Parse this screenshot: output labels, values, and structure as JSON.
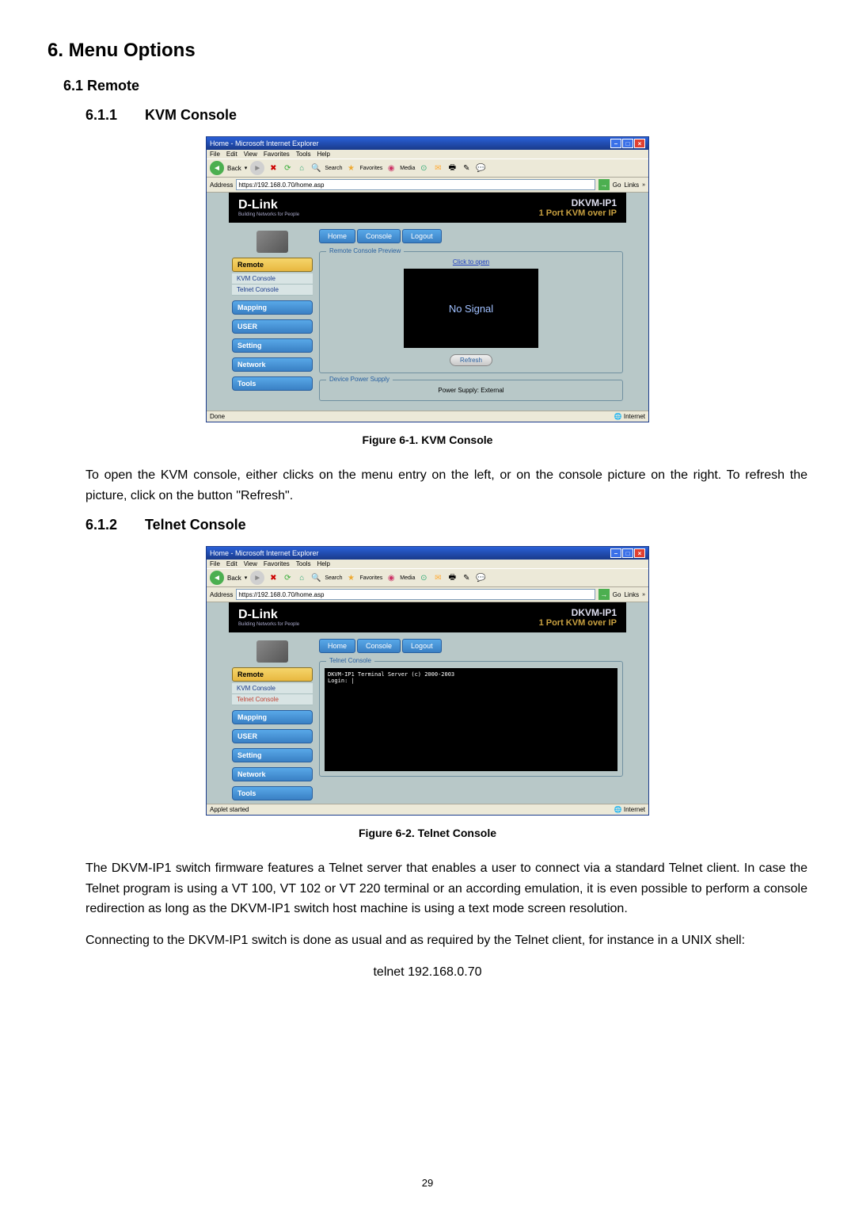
{
  "heading1": "6.  Menu Options",
  "heading2": "6.1 Remote",
  "section611": {
    "num": "6.1.1",
    "title": "KVM Console"
  },
  "section612": {
    "num": "6.1.2",
    "title": "Telnet Console"
  },
  "figure61_caption": "Figure 6-1. KVM Console",
  "figure62_caption": "Figure 6-2. Telnet Console",
  "para1": "To open the KVM console, either clicks on the menu entry on the left, or on the console picture on the right. To refresh the picture, click on the button \"Refresh\".",
  "para2": "The DKVM-IP1 switch firmware features a Telnet server that enables a user to connect via a standard Telnet client. In case the Telnet program is using a VT 100, VT 102 or VT 220 terminal or an according emulation, it is even possible to perform a console redirection as long as the DKVM-IP1 switch host machine is using a text mode screen resolution.",
  "para3": "Connecting to the DKVM-IP1 switch is done as usual and as required by the Telnet client, for instance in a UNIX shell:",
  "telnet_cmd": "telnet 192.168.0.70",
  "page_number": "29",
  "ie": {
    "title": "Home - Microsoft Internet Explorer",
    "menus": [
      "File",
      "Edit",
      "View",
      "Favorites",
      "Tools",
      "Help"
    ],
    "toolbar": {
      "back": "Back"
    },
    "address_label": "Address",
    "address_value": "https://192.168.0.70/home.asp",
    "go": "Go",
    "links": "Links",
    "status_done": "Done",
    "status_applet": "Applet started",
    "status_zone": "Internet"
  },
  "dlink": {
    "brand": "D-Link",
    "brand_sub": "Building Networks for People",
    "product_code": "DKVM-IP1",
    "product_desc": "1 Port KVM over IP",
    "tabs": [
      "Home",
      "Console",
      "Logout"
    ],
    "side_remote": "Remote",
    "side_kvm": "KVM Console",
    "side_telnet": "Telnet Console",
    "side_items": [
      "Mapping",
      "USER",
      "Setting",
      "Network",
      "Tools"
    ],
    "preview_legend": "Remote Console Preview",
    "preview_link": "Click to open",
    "preview_text": "No Signal",
    "refresh": "Refresh",
    "power_legend": "Device Power Supply",
    "power_text": "Power Supply: External",
    "telnet_legend": "Telnet Console",
    "telnet_lines": "DKVM-IP1 Terminal Server (c) 2000-2003\nLogin: |"
  }
}
